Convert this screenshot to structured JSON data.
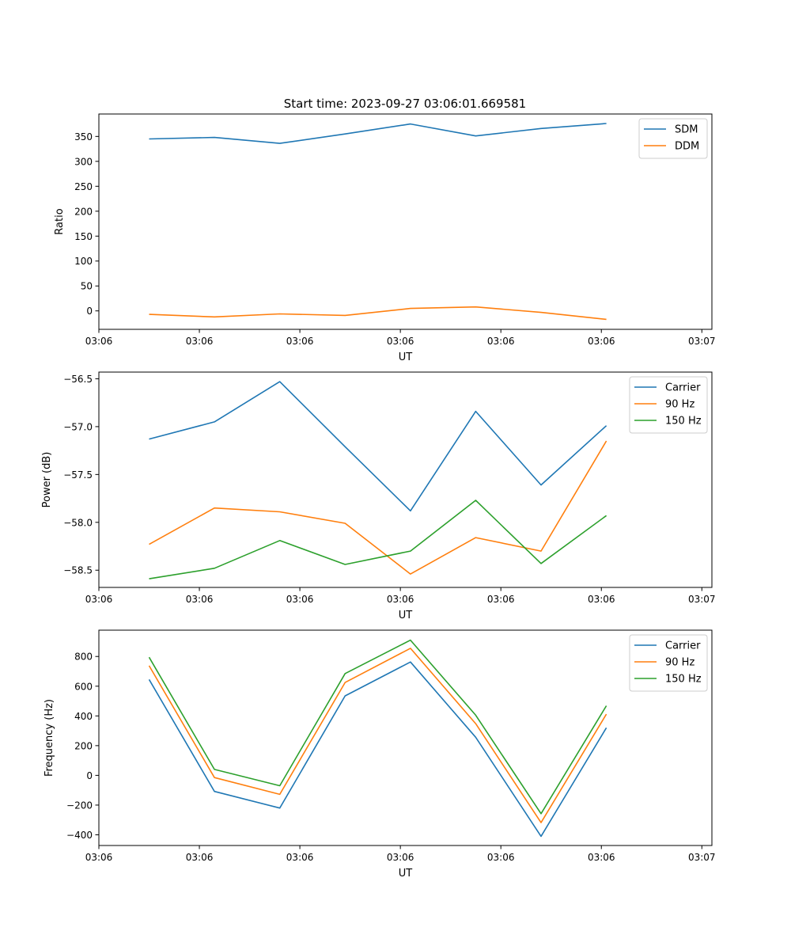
{
  "figure_title": "Start time: 2023-09-27 03:06:01.669581",
  "colors": {
    "blue": "#1f77b4",
    "orange": "#ff7f0e",
    "green": "#2ca02c"
  },
  "chart_data": [
    {
      "type": "line",
      "title": "Start time: 2023-09-27 03:06:01.669581",
      "xlabel": "UT",
      "ylabel": "Ratio",
      "xlim": [
        0,
        6.1
      ],
      "ylim": [
        -37,
        395
      ],
      "x": [
        0.5,
        1.15,
        1.8,
        2.45,
        3.1,
        3.75,
        4.4,
        5.05
      ],
      "xticks": [
        0,
        1,
        2,
        3,
        4,
        5,
        6
      ],
      "xtick_labels": [
        "03:06",
        "03:06",
        "03:06",
        "03:06",
        "03:06",
        "03:06",
        "03:07"
      ],
      "yticks": [
        0,
        50,
        100,
        150,
        200,
        250,
        300,
        350
      ],
      "ytick_labels": [
        "0",
        "50",
        "100",
        "150",
        "200",
        "250",
        "300",
        "350"
      ],
      "legend": "top-right",
      "series": [
        {
          "name": "SDM",
          "color": "#1f77b4",
          "values": [
            345,
            348,
            336,
            355,
            375,
            351,
            366,
            376
          ]
        },
        {
          "name": "DDM",
          "color": "#ff7f0e",
          "values": [
            -7,
            -12,
            -6,
            -9,
            5,
            8,
            -3,
            -17
          ]
        }
      ]
    },
    {
      "type": "line",
      "title": "",
      "xlabel": "UT",
      "ylabel": "Power (dB)",
      "xlim": [
        0,
        6.1
      ],
      "ylim": [
        -58.68,
        -56.43
      ],
      "x": [
        0.5,
        1.15,
        1.8,
        2.45,
        3.1,
        3.75,
        4.4,
        5.05
      ],
      "xticks": [
        0,
        1,
        2,
        3,
        4,
        5,
        6
      ],
      "xtick_labels": [
        "03:06",
        "03:06",
        "03:06",
        "03:06",
        "03:06",
        "03:06",
        "03:07"
      ],
      "yticks": [
        -58.5,
        -58.0,
        -57.5,
        -57.0,
        -56.5
      ],
      "ytick_labels": [
        "−58.5",
        "−58.0",
        "−57.5",
        "−57.0",
        "−56.5"
      ],
      "legend": "top-right",
      "series": [
        {
          "name": "Carrier",
          "color": "#1f77b4",
          "values": [
            -57.13,
            -56.95,
            -56.53,
            -57.21,
            -57.88,
            -56.84,
            -57.61,
            -56.99
          ]
        },
        {
          "name": "90 Hz",
          "color": "#ff7f0e",
          "values": [
            -58.23,
            -57.85,
            -57.89,
            -58.01,
            -58.54,
            -58.16,
            -58.3,
            -57.15
          ]
        },
        {
          "name": "150 Hz",
          "color": "#2ca02c",
          "values": [
            -58.59,
            -58.48,
            -58.19,
            -58.44,
            -58.3,
            -57.77,
            -58.43,
            -57.93
          ]
        }
      ]
    },
    {
      "type": "line",
      "title": "",
      "xlabel": "UT",
      "ylabel": "Frequency (Hz)",
      "xlim": [
        0,
        6.1
      ],
      "ylim": [
        -472,
        977
      ],
      "x": [
        0.5,
        1.15,
        1.8,
        2.45,
        3.1,
        3.75,
        4.4,
        5.05
      ],
      "xticks": [
        0,
        1,
        2,
        3,
        4,
        5,
        6
      ],
      "xtick_labels": [
        "03:06",
        "03:06",
        "03:06",
        "03:06",
        "03:06",
        "03:06",
        "03:07"
      ],
      "yticks": [
        -400,
        -200,
        0,
        200,
        400,
        600,
        800
      ],
      "ytick_labels": [
        "−400",
        "−200",
        "0",
        "200",
        "400",
        "600",
        "800"
      ],
      "legend": "top-right",
      "series": [
        {
          "name": "Carrier",
          "color": "#1f77b4",
          "values": [
            645,
            -108,
            -220,
            535,
            763,
            256,
            -410,
            320
          ]
        },
        {
          "name": "90 Hz",
          "color": "#ff7f0e",
          "values": [
            738,
            -15,
            -128,
            625,
            855,
            348,
            -318,
            412
          ]
        },
        {
          "name": "150 Hz",
          "color": "#2ca02c",
          "values": [
            795,
            40,
            -70,
            685,
            910,
            405,
            -258,
            468
          ]
        }
      ]
    }
  ]
}
